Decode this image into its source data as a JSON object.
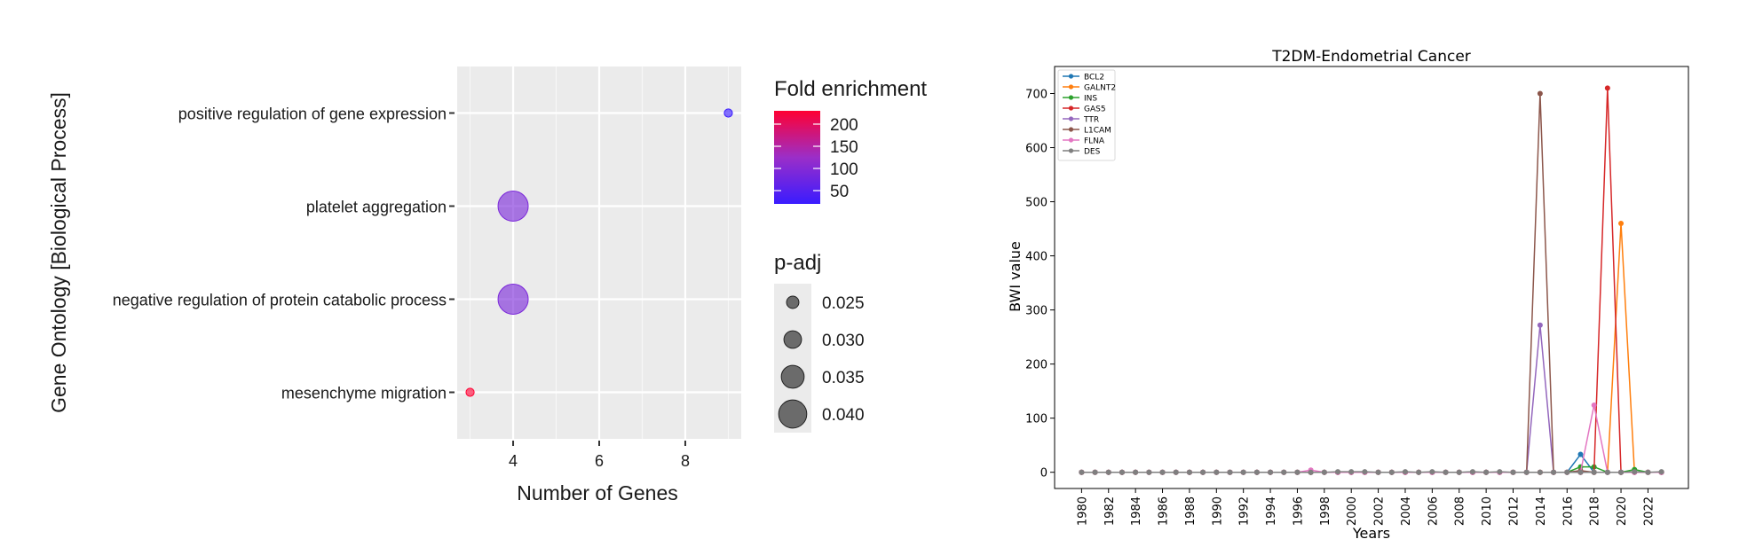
{
  "chart_data": [
    {
      "type": "scatter",
      "title": "",
      "xlabel": "Number of Genes",
      "ylabel": "Gene Ontology [Biological Process]",
      "xlim": [
        2.7,
        9.3
      ],
      "xticks": [
        "4",
        "6",
        "8"
      ],
      "xtick_values": [
        4,
        6,
        8
      ],
      "grid": true,
      "categories": [
        "positive regulation of gene expression",
        "platelet aggregation",
        "negative regulation of protein catabolic process",
        "mesenchyme migration"
      ],
      "points": [
        {
          "term": "positive regulation of gene expression",
          "genes": 9,
          "fold_enrichment": 20,
          "p_adj": 0.021
        },
        {
          "term": "platelet aggregation",
          "genes": 4,
          "fold_enrichment": 90,
          "p_adj": 0.042
        },
        {
          "term": "negative regulation of protein catabolic process",
          "genes": 4,
          "fold_enrichment": 90,
          "p_adj": 0.042
        },
        {
          "term": "mesenchyme migration",
          "genes": 3,
          "fold_enrichment": 230,
          "p_adj": 0.021
        }
      ],
      "legend_color": {
        "title": "Fold enrichment",
        "ticks": [
          "200",
          "150",
          "100",
          "50"
        ],
        "tick_values": [
          200,
          150,
          100,
          50
        ],
        "range": [
          20,
          230
        ],
        "colors": {
          "low": "#3a1cff",
          "mid": "#9b2ec8",
          "high": "#ff0033"
        }
      },
      "legend_size": {
        "title": "p-adj",
        "labels": [
          "0.025",
          "0.030",
          "0.035",
          "0.040"
        ],
        "values": [
          0.025,
          0.03,
          0.035,
          0.04
        ]
      }
    },
    {
      "type": "line",
      "title": "T2DM-Endometrial Cancer",
      "xlabel": "Years",
      "ylabel": "BWI value",
      "xlim": [
        1978,
        2025
      ],
      "ylim": [
        -30,
        750
      ],
      "yticks": [
        "0",
        "100",
        "200",
        "300",
        "400",
        "500",
        "600",
        "700"
      ],
      "ytick_values": [
        0,
        100,
        200,
        300,
        400,
        500,
        600,
        700
      ],
      "xticks": [
        "1980",
        "1982",
        "1984",
        "1986",
        "1988",
        "1990",
        "1992",
        "1994",
        "1996",
        "1998",
        "2000",
        "2002",
        "2004",
        "2006",
        "2008",
        "2010",
        "2012",
        "2014",
        "2016",
        "2018",
        "2020",
        "2022"
      ],
      "xtick_values": [
        1980,
        1982,
        1984,
        1986,
        1988,
        1990,
        1992,
        1994,
        1996,
        1998,
        2000,
        2002,
        2004,
        2006,
        2008,
        2010,
        2012,
        2014,
        2016,
        2018,
        2020,
        2022
      ],
      "legend_position": "top-left",
      "x": [
        1980,
        1981,
        1982,
        1983,
        1984,
        1985,
        1986,
        1987,
        1988,
        1989,
        1990,
        1991,
        1992,
        1993,
        1994,
        1995,
        1996,
        1997,
        1998,
        1999,
        2000,
        2001,
        2002,
        2003,
        2004,
        2005,
        2006,
        2007,
        2008,
        2009,
        2010,
        2011,
        2012,
        2013,
        2014,
        2015,
        2016,
        2017,
        2018,
        2019,
        2020,
        2021,
        2022,
        2023
      ],
      "series": [
        {
          "name": "BCL2",
          "color": "#1f77b4",
          "values": [
            0,
            0,
            0,
            0,
            0,
            0,
            0,
            0,
            0,
            0,
            0,
            0,
            0,
            0,
            0,
            0,
            0,
            0,
            0,
            0,
            0,
            0,
            0,
            0,
            0,
            0,
            0,
            0,
            0,
            0,
            0,
            0,
            0,
            0,
            0,
            0,
            0,
            33,
            0,
            0,
            0,
            0,
            0,
            0
          ]
        },
        {
          "name": "GALNT2",
          "color": "#ff7f0e",
          "values": [
            0,
            0,
            0,
            0,
            0,
            0,
            0,
            0,
            0,
            0,
            0,
            0,
            0,
            0,
            0,
            0,
            0,
            0,
            0,
            0,
            0,
            0,
            0,
            0,
            0,
            0,
            0,
            0,
            0,
            0,
            0,
            0,
            0,
            0,
            0,
            0,
            0,
            0,
            0,
            0,
            460,
            0,
            0,
            0
          ]
        },
        {
          "name": "INS",
          "color": "#2ca02c",
          "values": [
            0,
            0,
            0,
            0,
            0,
            0,
            0,
            0,
            0,
            0,
            0,
            0,
            0,
            0,
            0,
            0,
            0,
            0,
            0,
            0,
            0,
            0,
            0,
            0,
            0,
            0,
            0,
            0,
            0,
            0,
            0,
            0,
            0,
            0,
            0,
            0,
            0,
            10,
            10,
            0,
            0,
            5,
            0,
            0
          ]
        },
        {
          "name": "GAS5",
          "color": "#d62728",
          "values": [
            0,
            0,
            0,
            0,
            0,
            0,
            0,
            0,
            0,
            0,
            0,
            0,
            0,
            0,
            0,
            0,
            0,
            0,
            0,
            0,
            0,
            0,
            0,
            0,
            0,
            0,
            0,
            0,
            0,
            0,
            0,
            0,
            0,
            0,
            0,
            0,
            0,
            0,
            0,
            710,
            0,
            0,
            0,
            0
          ]
        },
        {
          "name": "TTR",
          "color": "#9467bd",
          "values": [
            0,
            0,
            0,
            0,
            0,
            0,
            0,
            0,
            0,
            0,
            0,
            0,
            0,
            0,
            0,
            0,
            0,
            0,
            0,
            0,
            0,
            0,
            0,
            0,
            0,
            0,
            0,
            0,
            0,
            0,
            0,
            0,
            0,
            0,
            272,
            0,
            0,
            0,
            0,
            0,
            0,
            0,
            0,
            0
          ]
        },
        {
          "name": "L1CAM",
          "color": "#8c564b",
          "values": [
            0,
            0,
            0,
            0,
            0,
            0,
            0,
            0,
            0,
            0,
            0,
            0,
            0,
            0,
            0,
            0,
            0,
            0,
            0,
            0,
            0,
            0,
            0,
            0,
            0,
            0,
            0,
            0,
            0,
            0,
            0,
            0,
            0,
            0,
            700,
            0,
            0,
            3,
            0,
            0,
            0,
            0,
            0,
            0
          ]
        },
        {
          "name": "FLNA",
          "color": "#e377c2",
          "values": [
            0,
            0,
            0,
            0,
            0,
            0,
            0,
            0,
            0,
            0,
            0,
            0,
            0,
            0,
            0,
            0,
            0,
            4,
            0,
            0,
            0,
            0,
            0,
            0,
            0,
            0,
            0,
            0,
            0,
            0,
            0,
            0,
            0,
            0,
            0,
            0,
            0,
            0,
            124,
            0,
            0,
            0,
            0,
            0
          ]
        },
        {
          "name": "DES",
          "color": "#7f7f7f",
          "values": [
            0,
            0,
            0,
            0,
            0,
            0,
            0,
            0,
            0,
            0,
            0,
            0,
            0,
            0,
            0,
            0,
            0,
            0,
            0,
            1,
            1,
            1,
            0,
            0,
            1,
            0,
            1,
            0,
            0,
            1,
            0,
            1,
            0,
            0,
            0,
            0,
            0,
            0,
            0,
            0,
            0,
            1,
            0,
            1
          ]
        }
      ]
    }
  ]
}
